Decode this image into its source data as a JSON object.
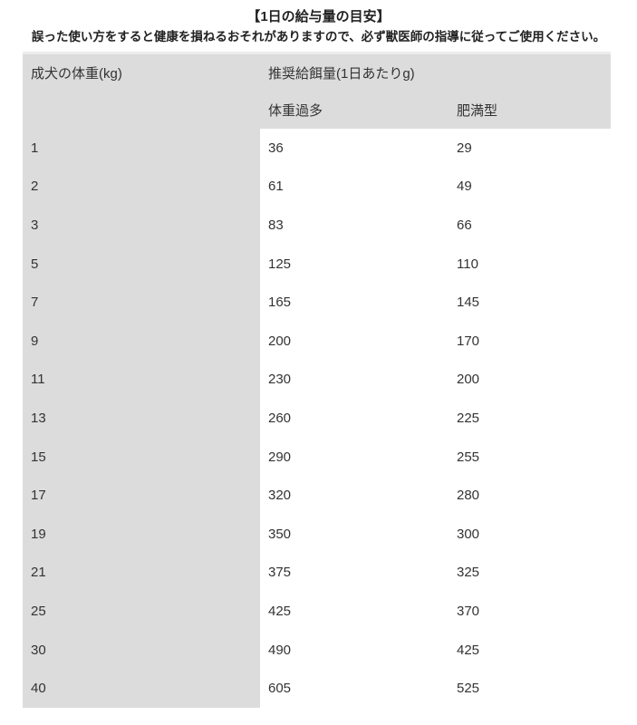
{
  "header": {
    "title": "【1日の給与量の目安】",
    "warning": "誤った使い方をすると健康を損ねるおそれがありますので、必ず獣医師の指導に従ってご使用ください。"
  },
  "table": {
    "weight_header": "成犬の体重(kg)",
    "amount_group_header": "推奨給餌量(1日あたりg)",
    "overweight_header": "体重過多",
    "obese_header": "肥満型"
  },
  "colors": {
    "header_bg": "#dcdcdc",
    "table_top_border": "#ececec",
    "text": "#333333"
  },
  "chart_data": {
    "type": "table",
    "title": "【1日の給与量の目安】",
    "note": "誤った使い方をすると健康を損ねるおそれがありますので、必ず獣医師の指導に従ってご使用ください。",
    "row_axis_label": "成犬の体重(kg)",
    "value_group_label": "推奨給餌量(1日あたりg)",
    "columns": [
      "成犬の体重(kg)",
      "体重過多",
      "肥満型"
    ],
    "rows": [
      [
        1,
        36,
        29
      ],
      [
        2,
        61,
        49
      ],
      [
        3,
        83,
        66
      ],
      [
        5,
        125,
        110
      ],
      [
        7,
        165,
        145
      ],
      [
        9,
        200,
        170
      ],
      [
        11,
        230,
        200
      ],
      [
        13,
        260,
        225
      ],
      [
        15,
        290,
        255
      ],
      [
        17,
        320,
        280
      ],
      [
        19,
        350,
        300
      ],
      [
        21,
        375,
        325
      ],
      [
        25,
        425,
        370
      ],
      [
        30,
        490,
        425
      ],
      [
        40,
        605,
        525
      ]
    ]
  }
}
